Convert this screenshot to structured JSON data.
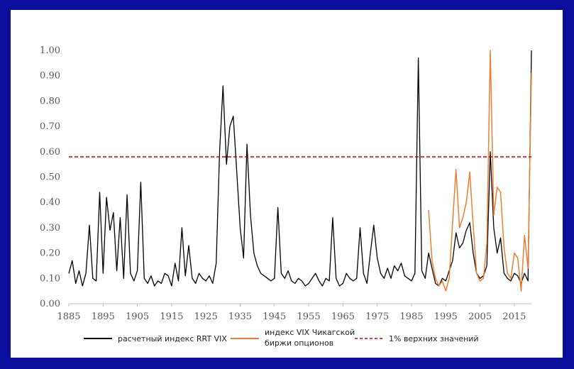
{
  "chart_data": {
    "type": "line",
    "title": "",
    "xlabel": "",
    "ylabel": "",
    "xlim": [
      1885,
      2020
    ],
    "ylim": [
      0,
      1
    ],
    "y_ticks": [
      "1.00",
      "0.90",
      "0.80",
      "0.70",
      "0.60",
      "0.50",
      "0.40",
      "0.30",
      "0.20",
      "0.10",
      "0.00"
    ],
    "x_ticks": [
      "1885",
      "1895",
      "1905",
      "1915",
      "1925",
      "1935",
      "1945",
      "1955",
      "1965",
      "1975",
      "1985",
      "1995",
      "2005",
      "2015"
    ],
    "threshold": 0.58,
    "legend_position": "bottom",
    "colors": {
      "rrt": "#000000",
      "cboe": "#ed7d31",
      "threshold": "#c00000"
    },
    "series": [
      {
        "name": "расчетный индекс RRT VIX",
        "x": [
          1885,
          1886,
          1887,
          1888,
          1889,
          1890,
          1891,
          1892,
          1893,
          1894,
          1895,
          1896,
          1897,
          1898,
          1899,
          1900,
          1901,
          1902,
          1903,
          1904,
          1905,
          1906,
          1907,
          1908,
          1909,
          1910,
          1911,
          1912,
          1913,
          1914,
          1915,
          1916,
          1917,
          1918,
          1919,
          1920,
          1921,
          1922,
          1923,
          1924,
          1925,
          1926,
          1927,
          1928,
          1929,
          1930,
          1931,
          1932,
          1933,
          1934,
          1935,
          1936,
          1937,
          1938,
          1939,
          1940,
          1941,
          1942,
          1943,
          1944,
          1945,
          1946,
          1947,
          1948,
          1949,
          1950,
          1951,
          1952,
          1953,
          1954,
          1955,
          1956,
          1957,
          1958,
          1959,
          1960,
          1961,
          1962,
          1963,
          1964,
          1965,
          1966,
          1967,
          1968,
          1969,
          1970,
          1971,
          1972,
          1973,
          1974,
          1975,
          1976,
          1977,
          1978,
          1979,
          1980,
          1981,
          1982,
          1983,
          1984,
          1985,
          1986,
          1987,
          1988,
          1989,
          1990,
          1991,
          1992,
          1993,
          1994,
          1995,
          1996,
          1997,
          1998,
          1999,
          2000,
          2001,
          2002,
          2003,
          2004,
          2005,
          2006,
          2007,
          2008,
          2009,
          2010,
          2011,
          2012,
          2013,
          2014,
          2015,
          2016,
          2017,
          2018,
          2019,
          2020
        ],
        "values": [
          0.12,
          0.17,
          0.08,
          0.13,
          0.07,
          0.12,
          0.31,
          0.1,
          0.09,
          0.44,
          0.12,
          0.42,
          0.29,
          0.36,
          0.13,
          0.34,
          0.1,
          0.43,
          0.12,
          0.09,
          0.13,
          0.48,
          0.1,
          0.08,
          0.11,
          0.07,
          0.09,
          0.08,
          0.12,
          0.11,
          0.07,
          0.16,
          0.09,
          0.3,
          0.11,
          0.23,
          0.1,
          0.08,
          0.12,
          0.1,
          0.09,
          0.11,
          0.08,
          0.16,
          0.6,
          0.86,
          0.55,
          0.7,
          0.74,
          0.52,
          0.3,
          0.18,
          0.63,
          0.35,
          0.2,
          0.15,
          0.12,
          0.11,
          0.1,
          0.09,
          0.1,
          0.38,
          0.12,
          0.1,
          0.13,
          0.09,
          0.08,
          0.1,
          0.09,
          0.07,
          0.08,
          0.1,
          0.12,
          0.09,
          0.07,
          0.1,
          0.09,
          0.34,
          0.1,
          0.07,
          0.08,
          0.12,
          0.1,
          0.09,
          0.1,
          0.3,
          0.12,
          0.08,
          0.2,
          0.31,
          0.18,
          0.12,
          0.1,
          0.14,
          0.1,
          0.15,
          0.13,
          0.16,
          0.11,
          0.1,
          0.09,
          0.12,
          0.97,
          0.13,
          0.1,
          0.2,
          0.14,
          0.08,
          0.07,
          0.1,
          0.09,
          0.13,
          0.17,
          0.28,
          0.22,
          0.24,
          0.29,
          0.32,
          0.2,
          0.12,
          0.1,
          0.11,
          0.15,
          0.6,
          0.3,
          0.2,
          0.26,
          0.12,
          0.1,
          0.09,
          0.12,
          0.11,
          0.08,
          0.12,
          0.09,
          1.0
        ]
      },
      {
        "name": "индекс VIX Чикагской биржи опционов",
        "x": [
          1990,
          1991,
          1992,
          1993,
          1994,
          1995,
          1996,
          1997,
          1998,
          1999,
          2000,
          2001,
          2002,
          2003,
          2004,
          2005,
          2006,
          2007,
          2008,
          2009,
          2010,
          2011,
          2012,
          2013,
          2014,
          2015,
          2016,
          2017,
          2018,
          2019,
          2020
        ],
        "values": [
          0.37,
          0.17,
          0.1,
          0.07,
          0.09,
          0.05,
          0.1,
          0.32,
          0.53,
          0.3,
          0.34,
          0.4,
          0.52,
          0.31,
          0.12,
          0.09,
          0.1,
          0.24,
          1.0,
          0.35,
          0.46,
          0.44,
          0.22,
          0.12,
          0.1,
          0.2,
          0.18,
          0.05,
          0.27,
          0.14,
          0.91
        ]
      }
    ]
  },
  "legend": {
    "rrt_label": "расчетный индекс RRT VIX",
    "cboe_label_line1": "индекс VIX Чикагской",
    "cboe_label_line2": "биржи опционов",
    "threshold_label": "1% верхних значений"
  }
}
